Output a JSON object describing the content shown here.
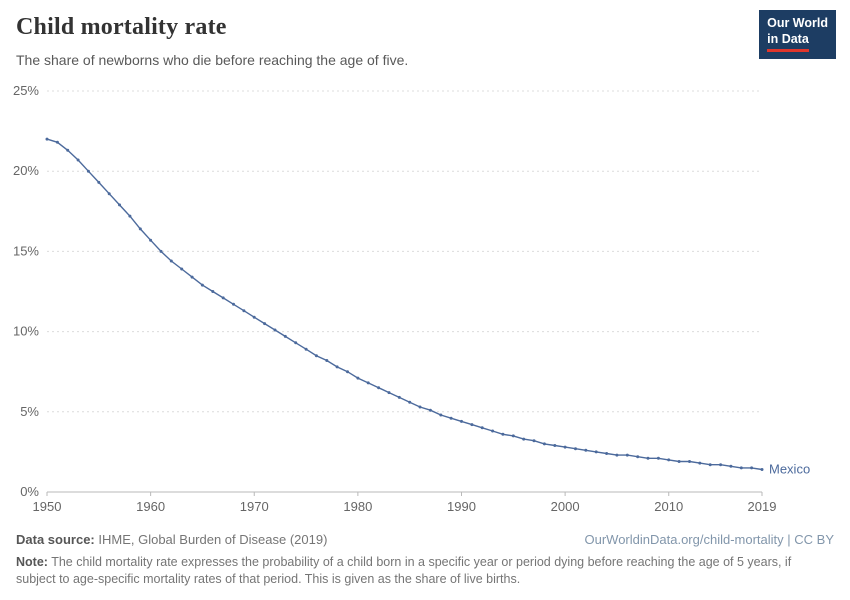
{
  "header": {
    "title": "Child mortality rate",
    "subtitle": "The share of newborns who die before reaching the age of five.",
    "logo_line1": "Our World",
    "logo_line2": "in Data"
  },
  "chart_data": {
    "type": "line",
    "title": "Child mortality rate",
    "xlabel": "",
    "ylabel": "",
    "xlim": [
      1950,
      2019
    ],
    "ylim": [
      0,
      25
    ],
    "x_ticks": [
      1950,
      1960,
      1970,
      1980,
      1990,
      2000,
      2010,
      2019
    ],
    "y_ticks": [
      0,
      5,
      10,
      15,
      20,
      25
    ],
    "y_tick_suffix": "%",
    "grid": true,
    "end_label": "Mexico",
    "series": [
      {
        "name": "Mexico",
        "color": "#4C6A9C",
        "x": [
          1950,
          1951,
          1952,
          1953,
          1954,
          1955,
          1956,
          1957,
          1958,
          1959,
          1960,
          1961,
          1962,
          1963,
          1964,
          1965,
          1966,
          1967,
          1968,
          1969,
          1970,
          1971,
          1972,
          1973,
          1974,
          1975,
          1976,
          1977,
          1978,
          1979,
          1980,
          1981,
          1982,
          1983,
          1984,
          1985,
          1986,
          1987,
          1988,
          1989,
          1990,
          1991,
          1992,
          1993,
          1994,
          1995,
          1996,
          1997,
          1998,
          1999,
          2000,
          2001,
          2002,
          2003,
          2004,
          2005,
          2006,
          2007,
          2008,
          2009,
          2010,
          2011,
          2012,
          2013,
          2014,
          2015,
          2016,
          2017,
          2018,
          2019
        ],
        "values": [
          22.0,
          21.8,
          21.3,
          20.7,
          20.0,
          19.3,
          18.6,
          17.9,
          17.2,
          16.4,
          15.7,
          15.0,
          14.4,
          13.9,
          13.4,
          12.9,
          12.5,
          12.1,
          11.7,
          11.3,
          10.9,
          10.5,
          10.1,
          9.7,
          9.3,
          8.9,
          8.5,
          8.2,
          7.8,
          7.5,
          7.1,
          6.8,
          6.5,
          6.2,
          5.9,
          5.6,
          5.3,
          5.1,
          4.8,
          4.6,
          4.4,
          4.2,
          4.0,
          3.8,
          3.6,
          3.5,
          3.3,
          3.2,
          3.0,
          2.9,
          2.8,
          2.7,
          2.6,
          2.5,
          2.4,
          2.3,
          2.3,
          2.2,
          2.1,
          2.1,
          2.0,
          1.9,
          1.9,
          1.8,
          1.7,
          1.7,
          1.6,
          1.5,
          1.5,
          1.4
        ]
      }
    ]
  },
  "footer": {
    "source_label": "Data source:",
    "source_text": " IHME, Global Burden of Disease (2019)",
    "link_text": "OurWorldinData.org/child-mortality | CC BY",
    "note_label": "Note:",
    "note_text": " The child mortality rate expresses the probability of a child born in a specific year or period dying before reaching the age of 5 years, if subject to age-specific mortality rates of that period. This is given as the share of live births."
  }
}
